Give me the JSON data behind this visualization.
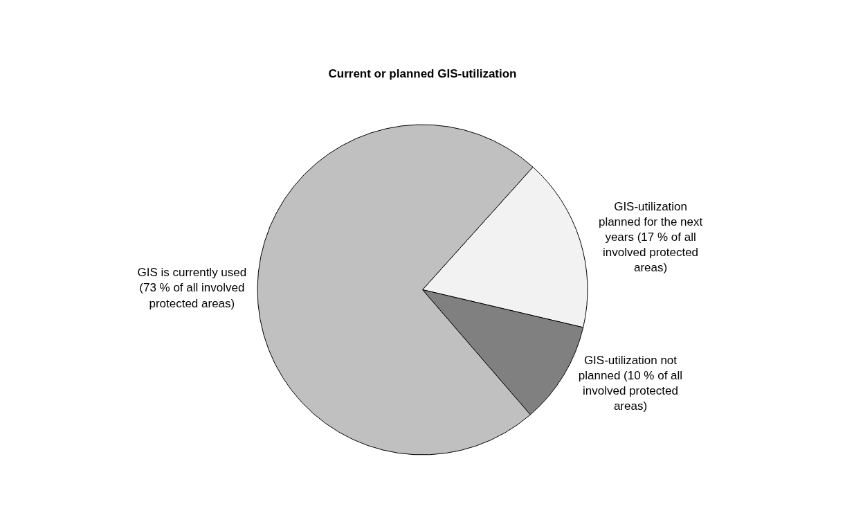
{
  "chart_data": {
    "type": "pie",
    "title": "Current or planned GIS-utilization",
    "categories": [
      "GIS-utilization planned for the next years (17 % of all involved protected areas)",
      "GIS-utilization not planned (10 % of all involved protected areas)",
      "GIS is currently used (73 % of all involved protected areas)"
    ],
    "values": [
      17,
      10,
      73
    ],
    "colors": [
      "#f2f2f2",
      "#808080",
      "#c0c0c0"
    ],
    "legend": false
  }
}
